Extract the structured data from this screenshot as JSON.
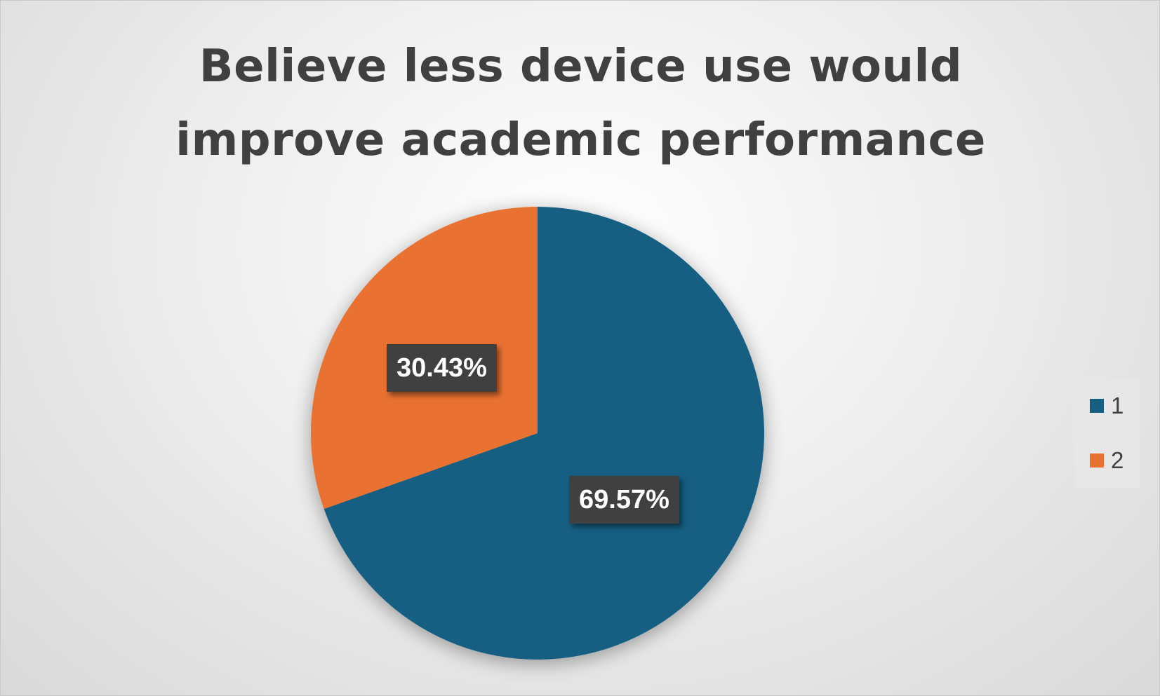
{
  "chart_data": {
    "type": "pie",
    "title": "Believe less device use would improve academic performance",
    "categories": [
      "1",
      "2"
    ],
    "values": [
      69.57,
      30.43
    ],
    "data_labels": [
      "69.57%",
      "30.43%"
    ],
    "colors": [
      "#175E83",
      "#E97132"
    ],
    "legend": {
      "placement": "right",
      "entries": [
        "1",
        "2"
      ]
    }
  }
}
